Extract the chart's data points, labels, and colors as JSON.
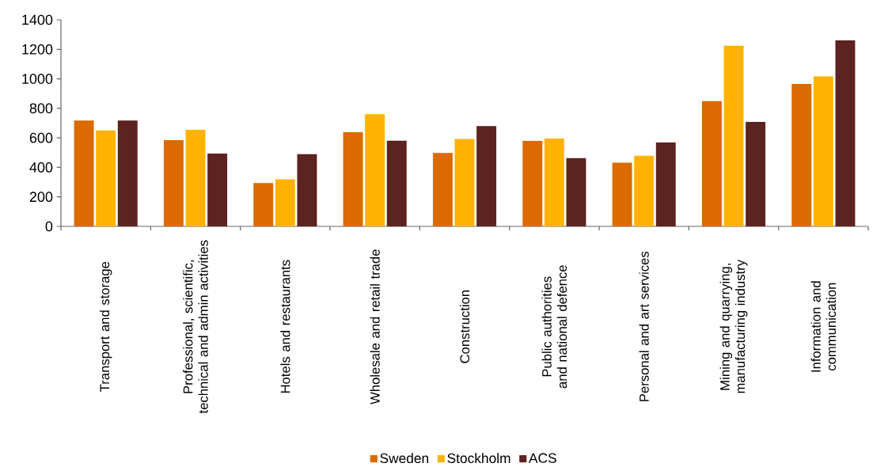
{
  "chart_data": {
    "type": "bar",
    "categories": [
      "Transport and storage",
      "Professional, scientific, technical and admin activities",
      "Hotels and restaurants",
      "Wholesale and retail trade",
      "Construction",
      "Public authorities and national defence",
      "Personal and art services",
      "Mining and quarrying, manufacturing industry",
      "Information and communication"
    ],
    "series": [
      {
        "name": "Sweden",
        "color": "#db6a00",
        "values": [
          717,
          585,
          294,
          638,
          498,
          579,
          432,
          849,
          965
        ]
      },
      {
        "name": "Stockholm",
        "color": "#ffb300",
        "values": [
          650,
          654,
          319,
          760,
          593,
          595,
          479,
          1224,
          1017
        ]
      },
      {
        "name": "ACS",
        "color": "#5c2320",
        "values": [
          717,
          494,
          490,
          581,
          680,
          463,
          568,
          708,
          1261
        ]
      }
    ],
    "ylim": [
      0,
      1400
    ],
    "yticks": [
      0,
      200,
      400,
      600,
      800,
      1000,
      1200,
      1400
    ],
    "grid": false,
    "legend": "bottom"
  }
}
